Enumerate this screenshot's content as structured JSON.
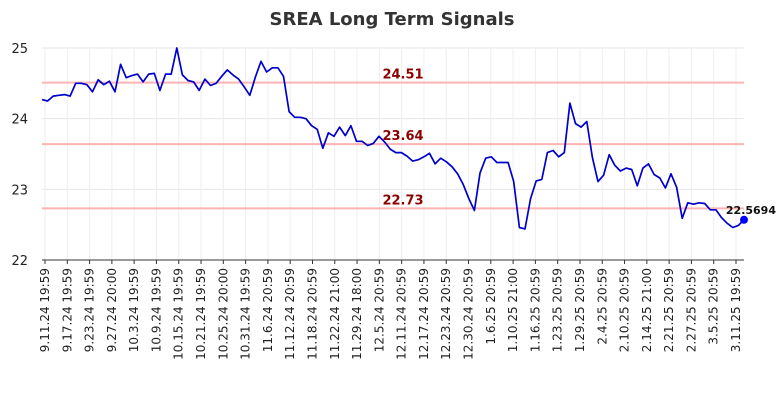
{
  "chart_data": {
    "type": "line",
    "title": "SREA Long Term Signals",
    "xlabel": "",
    "ylabel": "",
    "ylim": [
      22,
      25
    ],
    "yticks": [
      "22",
      "23",
      "24",
      "25"
    ],
    "grid": true,
    "colors": {
      "line": "#0000cc",
      "threshold": "#ffb3b3",
      "annotation": "#8b0000",
      "last_point": "#0000ff"
    },
    "x_tick_labels": [
      "9.11.24 19:59",
      "9.17.24 19:59",
      "9.23.24 19:59",
      "9.27.24 20:00",
      "10.3.24 19:59",
      "10.9.24 19:59",
      "10.15.24 19:59",
      "10.21.24 19:59",
      "10.25.24 20:00",
      "10.31.24 19:59",
      "11.6.24 20:59",
      "11.12.24 20:59",
      "11.18.24 20:59",
      "11.22.24 21:00",
      "11.29.24 18:00",
      "12.5.24 20:59",
      "12.11.24 20:59",
      "12.17.24 20:59",
      "12.23.24 20:59",
      "12.30.24 20:59",
      "1.6.25 20:59",
      "1.10.25 21:00",
      "1.16.25 20:59",
      "1.23.25 20:59",
      "1.29.25 20:59",
      "2.4.25 20:59",
      "2.10.25 20:59",
      "2.14.25 21:00",
      "2.21.25 20:59",
      "2.27.25 20:59",
      "3.5.25 20:59",
      "3.11.25 19:59"
    ],
    "thresholds": [
      {
        "value": 24.51,
        "label": "24.51"
      },
      {
        "value": 23.64,
        "label": "23.64"
      },
      {
        "value": 22.73,
        "label": "22.73"
      }
    ],
    "last_value_label": "22.5694",
    "series": [
      {
        "values": [
          24.27,
          24.25,
          24.32,
          24.33,
          24.34,
          24.32,
          24.5,
          24.5,
          24.48,
          24.38,
          24.55,
          24.48,
          24.53,
          24.38,
          24.77,
          24.58,
          24.61,
          24.63,
          24.52,
          24.63,
          24.64,
          24.4,
          24.63,
          24.63,
          25.0,
          24.62,
          24.54,
          24.52,
          24.4,
          24.56,
          24.47,
          24.5,
          24.6,
          24.69,
          24.62,
          24.56,
          24.45,
          24.33,
          24.59,
          24.81,
          24.66,
          24.72,
          24.72,
          24.6,
          24.1,
          24.02,
          24.02,
          24.0,
          23.9,
          23.85,
          23.58,
          23.8,
          23.75,
          23.88,
          23.76,
          23.9,
          23.68,
          23.68,
          23.62,
          23.65,
          23.75,
          23.67,
          23.57,
          23.52,
          23.52,
          23.47,
          23.4,
          23.42,
          23.46,
          23.51,
          23.36,
          23.44,
          23.39,
          23.32,
          23.22,
          23.07,
          22.87,
          22.7,
          23.23,
          23.44,
          23.46,
          23.38,
          23.38,
          23.38,
          23.11,
          22.46,
          22.44,
          22.87,
          23.12,
          23.14,
          23.52,
          23.55,
          23.46,
          23.52,
          24.22,
          23.93,
          23.88,
          23.96,
          23.45,
          23.11,
          23.2,
          23.49,
          23.34,
          23.26,
          23.3,
          23.28,
          23.05,
          23.3,
          23.36,
          23.21,
          23.16,
          23.02,
          23.22,
          23.03,
          22.59,
          22.81,
          22.79,
          22.81,
          22.8,
          22.71,
          22.71,
          22.6,
          22.52,
          22.46,
          22.49,
          22.5694
        ]
      }
    ]
  }
}
